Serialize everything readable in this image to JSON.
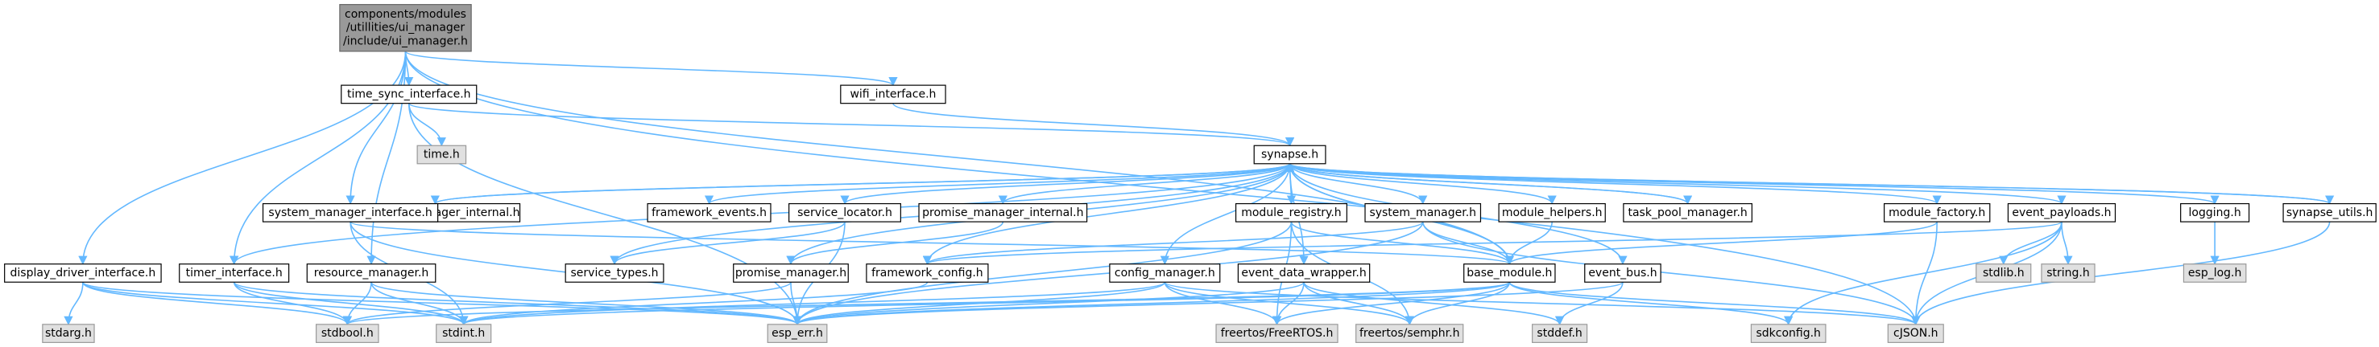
{
  "colors": {
    "node_fill": "#ffffff",
    "node_stroke": "#000000",
    "root_fill": "#999999",
    "root_stroke": "#666666",
    "external_fill": "#e0e0e0",
    "external_stroke": "#999999",
    "edge": "#63b8ff",
    "edge_muted": "#a0a0a0"
  },
  "root": {
    "id": "ui_manager_h",
    "lines": [
      "components/modules",
      "/utillities/ui_manager",
      "/include/ui_manager.h"
    ]
  },
  "nodes": [
    {
      "id": "time_sync_interface_h",
      "label": "time_sync_interface.h"
    },
    {
      "id": "time_h",
      "label": "time.h",
      "external": true
    },
    {
      "id": "wifi_interface_h",
      "label": "wifi_interface.h"
    },
    {
      "id": "synapse_h",
      "label": "synapse.h"
    },
    {
      "id": "task_pool_manager_internal_h",
      "label": "task_pool_manager_internal.h"
    },
    {
      "id": "framework_events_h",
      "label": "framework_events.h"
    },
    {
      "id": "service_locator_h",
      "label": "service_locator.h"
    },
    {
      "id": "promise_manager_internal_h",
      "label": "promise_manager_internal.h"
    },
    {
      "id": "module_registry_h",
      "label": "module_registry.h"
    },
    {
      "id": "system_manager_h",
      "label": "system_manager.h"
    },
    {
      "id": "module_helpers_h",
      "label": "module_helpers.h"
    },
    {
      "id": "task_pool_manager_h",
      "label": "task_pool_manager.h"
    },
    {
      "id": "module_factory_h",
      "label": "module_factory.h"
    },
    {
      "id": "event_payloads_h",
      "label": "event_payloads.h"
    },
    {
      "id": "logging_h",
      "label": "logging.h"
    },
    {
      "id": "synapse_utils_h",
      "label": "synapse_utils.h"
    },
    {
      "id": "system_manager_interface_h",
      "label": "system_manager_interface.h"
    },
    {
      "id": "display_driver_interface_h",
      "label": "display_driver_interface.h"
    },
    {
      "id": "timer_interface_h",
      "label": "timer_interface.h"
    },
    {
      "id": "resource_manager_h",
      "label": "resource_manager.h"
    },
    {
      "id": "service_types_h",
      "label": "service_types.h"
    },
    {
      "id": "promise_manager_h",
      "label": "promise_manager.h"
    },
    {
      "id": "framework_config_h",
      "label": "framework_config.h"
    },
    {
      "id": "config_manager_h",
      "label": "config_manager.h"
    },
    {
      "id": "event_data_wrapper_h",
      "label": "event_data_wrapper.h"
    },
    {
      "id": "base_module_h",
      "label": "base_module.h"
    },
    {
      "id": "event_bus_h",
      "label": "event_bus.h"
    },
    {
      "id": "stdlib_h",
      "label": "stdlib.h",
      "external": true
    },
    {
      "id": "string_h",
      "label": "string.h",
      "external": true
    },
    {
      "id": "esp_log_h",
      "label": "esp_log.h",
      "external": true
    },
    {
      "id": "stdarg_h",
      "label": "stdarg.h",
      "external": true
    },
    {
      "id": "stdbool_h",
      "label": "stdbool.h",
      "external": true
    },
    {
      "id": "stdint_h",
      "label": "stdint.h",
      "external": true
    },
    {
      "id": "esp_err_h",
      "label": "esp_err.h",
      "external": true
    },
    {
      "id": "freertos_FreeRTOS_h",
      "label": "freertos/FreeRTOS.h",
      "external": true
    },
    {
      "id": "freertos_semphr_h",
      "label": "freertos/semphr.h",
      "external": true
    },
    {
      "id": "stddef_h",
      "label": "stddef.h",
      "external": true
    },
    {
      "id": "sdkconfig_h",
      "label": "sdkconfig.h",
      "external": true
    },
    {
      "id": "cJSON_h",
      "label": "cJSON.h",
      "external": true
    }
  ],
  "edges": [
    [
      "ui_manager_h",
      "time_sync_interface_h"
    ],
    [
      "ui_manager_h",
      "wifi_interface_h"
    ],
    [
      "ui_manager_h",
      "system_manager_interface_h"
    ],
    [
      "ui_manager_h",
      "display_driver_interface_h"
    ],
    [
      "ui_manager_h",
      "resource_manager_h"
    ],
    [
      "ui_manager_h",
      "timer_interface_h"
    ],
    [
      "ui_manager_h",
      "base_module_h"
    ],
    [
      "ui_manager_h",
      "cJSON_h"
    ],
    [
      "time_sync_interface_h",
      "time_h"
    ],
    [
      "time_sync_interface_h",
      "synapse_h"
    ],
    [
      "time_sync_interface_h",
      "esp_err_h"
    ],
    [
      "wifi_interface_h",
      "synapse_h"
    ],
    [
      "synapse_h",
      "task_pool_manager_internal_h"
    ],
    [
      "synapse_h",
      "framework_events_h"
    ],
    [
      "synapse_h",
      "service_locator_h"
    ],
    [
      "synapse_h",
      "promise_manager_internal_h"
    ],
    [
      "synapse_h",
      "module_registry_h"
    ],
    [
      "synapse_h",
      "system_manager_h"
    ],
    [
      "synapse_h",
      "module_helpers_h"
    ],
    [
      "synapse_h",
      "task_pool_manager_h"
    ],
    [
      "synapse_h",
      "module_factory_h"
    ],
    [
      "synapse_h",
      "event_payloads_h"
    ],
    [
      "synapse_h",
      "logging_h"
    ],
    [
      "synapse_h",
      "synapse_utils_h"
    ],
    [
      "synapse_h",
      "service_types_h"
    ],
    [
      "synapse_h",
      "framework_config_h"
    ],
    [
      "synapse_h",
      "config_manager_h"
    ],
    [
      "synapse_h",
      "event_data_wrapper_h"
    ],
    [
      "synapse_h",
      "base_module_h"
    ],
    [
      "synapse_h",
      "event_bus_h"
    ],
    [
      "synapse_h",
      "timer_interface_h"
    ],
    [
      "synapse_h",
      "promise_manager_h"
    ],
    [
      "task_pool_manager_internal_h",
      "synapse_h"
    ],
    [
      "task_pool_manager_h",
      "synapse_h"
    ],
    [
      "synapse_utils_h",
      "synapse_h"
    ],
    [
      "base_module_h",
      "synapse_h"
    ],
    [
      "service_locator_h",
      "service_types_h"
    ],
    [
      "service_locator_h",
      "esp_err_h"
    ],
    [
      "promise_manager_internal_h",
      "promise_manager_h"
    ],
    [
      "module_registry_h",
      "base_module_h"
    ],
    [
      "module_registry_h",
      "esp_err_h"
    ],
    [
      "module_registry_h",
      "freertos_FreeRTOS_h"
    ],
    [
      "module_registry_h",
      "freertos_semphr_h"
    ],
    [
      "system_manager_h",
      "base_module_h"
    ],
    [
      "system_manager_h",
      "framework_config_h"
    ],
    [
      "system_manager_h",
      "esp_err_h"
    ],
    [
      "system_manager_h",
      "cJSON_h"
    ],
    [
      "module_helpers_h",
      "base_module_h"
    ],
    [
      "module_factory_h",
      "base_module_h"
    ],
    [
      "module_factory_h",
      "cJSON_h"
    ],
    [
      "event_payloads_h",
      "stdlib_h"
    ],
    [
      "event_payloads_h",
      "string_h"
    ],
    [
      "event_payloads_h",
      "cJSON_h"
    ],
    [
      "event_payloads_h",
      "sdkconfig_h"
    ],
    [
      "event_payloads_h",
      "framework_config_h"
    ],
    [
      "logging_h",
      "esp_log_h"
    ],
    [
      "synapse_utils_h",
      "cJSON_h"
    ],
    [
      "system_manager_interface_h",
      "base_module_h"
    ],
    [
      "system_manager_interface_h",
      "esp_err_h"
    ],
    [
      "system_manager_interface_h",
      "stdint_h"
    ],
    [
      "display_driver_interface_h",
      "stdarg_h"
    ],
    [
      "display_driver_interface_h",
      "stdbool_h"
    ],
    [
      "display_driver_interface_h",
      "stdint_h"
    ],
    [
      "display_driver_interface_h",
      "esp_err_h"
    ],
    [
      "timer_interface_h",
      "stdbool_h"
    ],
    [
      "timer_interface_h",
      "stdint_h"
    ],
    [
      "timer_interface_h",
      "esp_err_h"
    ],
    [
      "resource_manager_h",
      "stdbool_h"
    ],
    [
      "resource_manager_h",
      "stdint_h"
    ],
    [
      "resource_manager_h",
      "esp_err_h"
    ],
    [
      "promise_manager_h",
      "esp_err_h"
    ],
    [
      "promise_manager_h",
      "stdbool_h"
    ],
    [
      "framework_config_h",
      "stdint_h"
    ],
    [
      "config_manager_h",
      "esp_err_h"
    ],
    [
      "config_manager_h",
      "freertos_FreeRTOS_h"
    ],
    [
      "config_manager_h",
      "freertos_semphr_h"
    ],
    [
      "config_manager_h",
      "cJSON_h"
    ],
    [
      "config_manager_h",
      "stdint_h"
    ],
    [
      "event_data_wrapper_h",
      "freertos_FreeRTOS_h"
    ],
    [
      "event_data_wrapper_h",
      "freertos_semphr_h"
    ],
    [
      "event_data_wrapper_h",
      "stddef_h"
    ],
    [
      "event_data_wrapper_h",
      "esp_err_h"
    ],
    [
      "base_module_h",
      "esp_err_h"
    ],
    [
      "base_module_h",
      "freertos_FreeRTOS_h"
    ],
    [
      "base_module_h",
      "freertos_semphr_h"
    ],
    [
      "base_module_h",
      "cJSON_h"
    ],
    [
      "base_module_h",
      "sdkconfig_h"
    ],
    [
      "base_module_h",
      "stdbool_h"
    ],
    [
      "base_module_h",
      "stdint_h"
    ],
    [
      "event_bus_h",
      "stddef_h"
    ],
    [
      "event_bus_h",
      "esp_err_h"
    ]
  ]
}
